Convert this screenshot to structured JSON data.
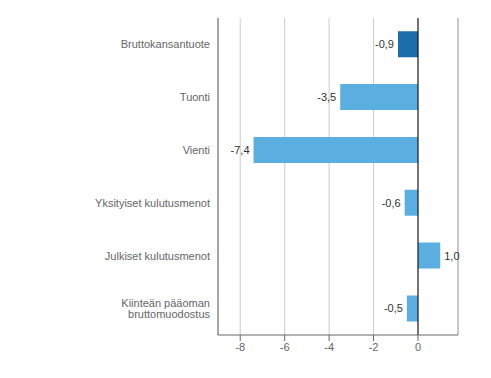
{
  "chart_data": {
    "type": "bar",
    "orientation": "horizontal",
    "categories": [
      "Bruttokansantuote",
      "Tuonti",
      "Vienti",
      "Yksityiset kulutusmenot",
      "Julkiset kulutusmenot",
      "Kiinteän pääoman bruttomuodostus"
    ],
    "values": [
      -0.9,
      -3.5,
      -7.4,
      -0.6,
      1.0,
      -0.5
    ],
    "value_labels": [
      "-0,9",
      "-3,5",
      "-7,4",
      "-0,6",
      "1,0",
      "-0,5"
    ],
    "data_labels": true,
    "colors": [
      "#1a6fab",
      "#5baee0",
      "#5baee0",
      "#5baee0",
      "#5baee0",
      "#5baee0"
    ],
    "xlim": [
      -9,
      1.8
    ],
    "xticks": [
      -8,
      -6,
      -4,
      -2,
      0
    ],
    "grid": true
  }
}
